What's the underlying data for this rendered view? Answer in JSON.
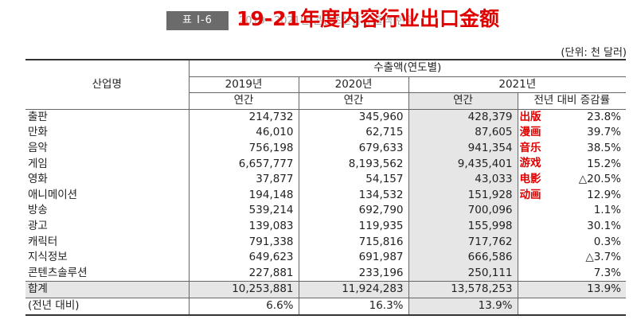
{
  "header": {
    "table_label": "표 Ⅰ-6",
    "ghost_title": "2019~2021년 콘텐츠산업 수출액 현황",
    "overlay_title": "19-21年度内容行业出口金额",
    "unit_note": "(단위: 천 달러)"
  },
  "columns": {
    "industry": "산업명",
    "export_group": "수출액(연도별)",
    "year_2019": "2019년",
    "year_2020": "2020년",
    "year_2021": "2021년",
    "annual": "연간",
    "yoy_rate": "전년 대비 증감률"
  },
  "rows": [
    {
      "name": "출판",
      "v2019": "214,732",
      "v2020": "345,960",
      "v2021": "428,379",
      "rate": "23.8%",
      "tag": "出版"
    },
    {
      "name": "만화",
      "v2019": "46,010",
      "v2020": "62,715",
      "v2021": "87,605",
      "rate": "39.7%",
      "tag": "漫画"
    },
    {
      "name": "음악",
      "v2019": "756,198",
      "v2020": "679,633",
      "v2021": "941,354",
      "rate": "38.5%",
      "tag": "音乐"
    },
    {
      "name": "게임",
      "v2019": "6,657,777",
      "v2020": "8,193,562",
      "v2021": "9,435,401",
      "rate": "15.2%",
      "tag": "游戏"
    },
    {
      "name": "영화",
      "v2019": "37,877",
      "v2020": "54,157",
      "v2021": "43,033",
      "rate": "△20.5%",
      "tag": "电影"
    },
    {
      "name": "애니메이션",
      "v2019": "194,148",
      "v2020": "134,532",
      "v2021": "151,928",
      "rate": "12.9%",
      "tag": "动画"
    },
    {
      "name": "방송",
      "v2019": "539,214",
      "v2020": "692,790",
      "v2021": "700,096",
      "rate": "1.1%",
      "tag": ""
    },
    {
      "name": "광고",
      "v2019": "139,083",
      "v2020": "119,935",
      "v2021": "155,998",
      "rate": "30.1%",
      "tag": ""
    },
    {
      "name": "캐릭터",
      "v2019": "791,338",
      "v2020": "715,816",
      "v2021": "717,762",
      "rate": "0.3%",
      "tag": ""
    },
    {
      "name": "지식정보",
      "v2019": "649,623",
      "v2020": "691,987",
      "v2021": "666,586",
      "rate": "△3.7%",
      "tag": ""
    },
    {
      "name": "콘텐츠솔루션",
      "v2019": "227,881",
      "v2020": "233,196",
      "v2021": "250,111",
      "rate": "7.3%",
      "tag": ""
    }
  ],
  "total": {
    "name": "합계",
    "v2019": "10,253,881",
    "v2020": "11,924,283",
    "v2021": "13,578,253",
    "rate": "13.9%"
  },
  "yoy": {
    "name": "(전년 대비)",
    "v2019": "6.6%",
    "v2020": "16.3%",
    "v2021": "13.9%"
  },
  "colors": {
    "overlay_red": "#e00000",
    "shade_gray": "#e6e6e6",
    "label_gray": "#6b6b6b"
  }
}
